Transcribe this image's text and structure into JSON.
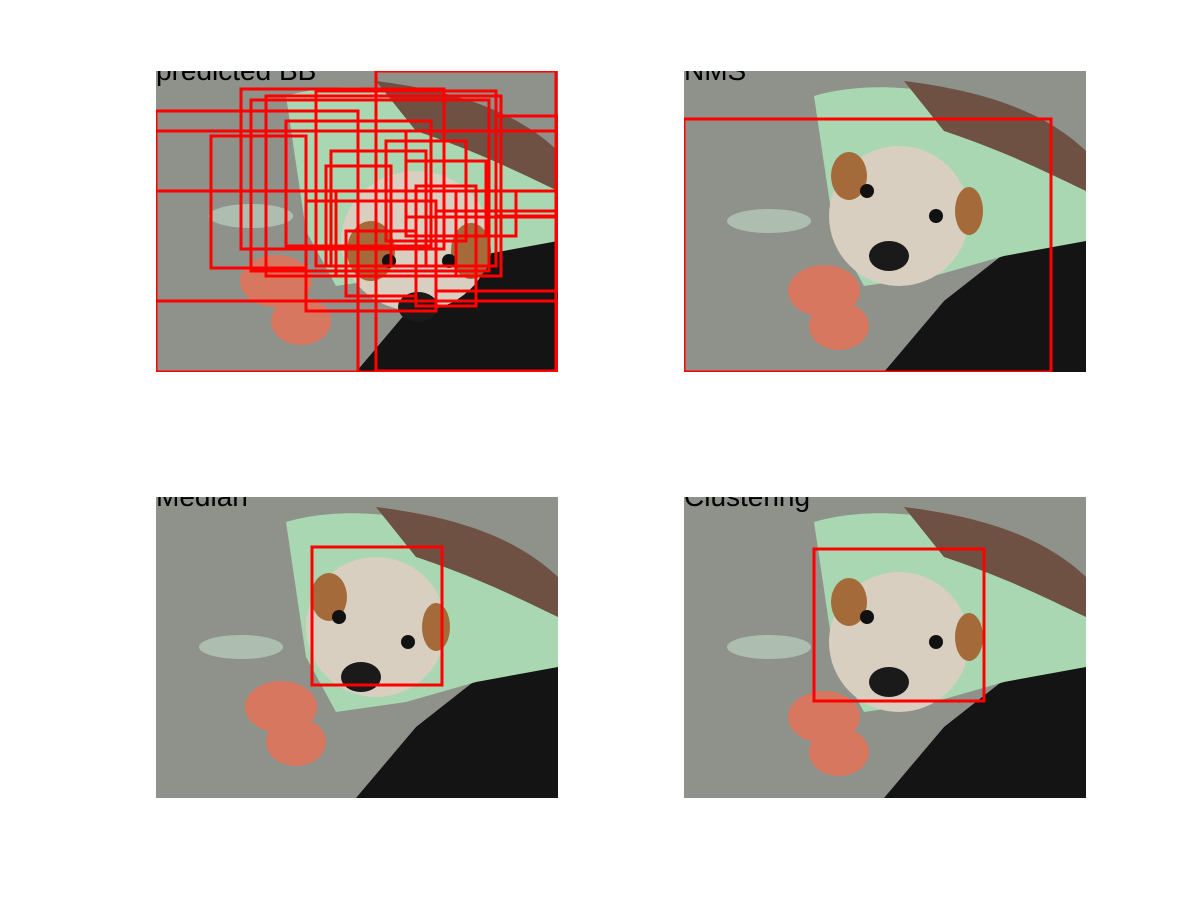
{
  "panels": [
    {
      "key": "predicted",
      "title": "predicted BB",
      "boxes": [
        [
          85,
          18,
          288,
          178
        ],
        [
          95,
          29,
          333,
          200
        ],
        [
          110,
          25,
          345,
          205
        ],
        [
          160,
          20,
          340,
          195
        ],
        [
          220,
          0,
          400,
          300
        ],
        [
          55,
          65,
          150,
          197
        ],
        [
          130,
          50,
          275,
          175
        ],
        [
          175,
          80,
          270,
          195
        ],
        [
          0,
          40,
          202,
          301
        ],
        [
          150,
          130,
          280,
          240
        ],
        [
          170,
          95,
          235,
          195
        ],
        [
          250,
          60,
          400,
          146
        ],
        [
          250,
          90,
          330,
          165
        ],
        [
          310,
          120,
          360,
          165
        ],
        [
          0,
          230,
          402,
          301
        ],
        [
          180,
          120,
          300,
          205
        ],
        [
          340,
          45,
          402,
          145
        ],
        [
          260,
          115,
          320,
          235
        ],
        [
          230,
          70,
          310,
          170
        ],
        [
          190,
          160,
          260,
          225
        ],
        [
          280,
          140,
          402,
          220
        ],
        [
          0,
          60,
          402,
          120
        ]
      ]
    },
    {
      "key": "nms",
      "title": "NMS",
      "boxes": [
        [
          0,
          48,
          367,
          301
        ]
      ]
    },
    {
      "key": "median",
      "title": "Median",
      "boxes": [
        [
          156,
          50,
          286,
          188
        ]
      ]
    },
    {
      "key": "clustering",
      "title": "Clustering",
      "boxes": [
        [
          130,
          52,
          300,
          204
        ]
      ]
    }
  ],
  "colors": {
    "box_stroke": "#ff0000",
    "blanket": "#8e928a",
    "towel": "#a9d7b1",
    "dark_background": "#141414",
    "puppy_face": "#d8cfc0",
    "flower": "#d8775f"
  }
}
